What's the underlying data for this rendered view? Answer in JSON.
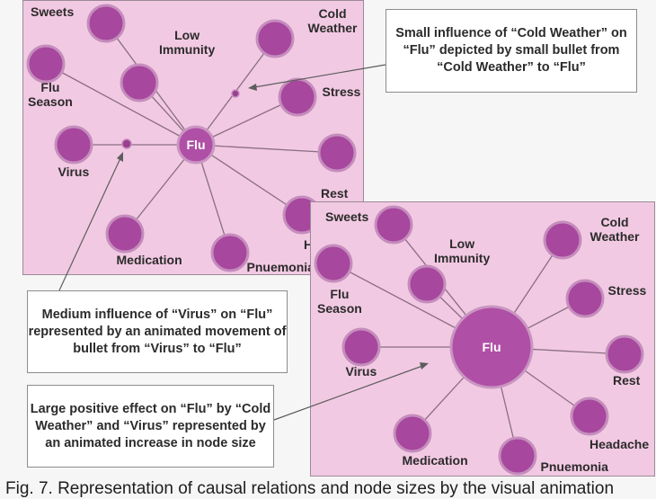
{
  "panel_a": {
    "hub": {
      "id": "flu",
      "label": "Flu"
    },
    "nodes": [
      {
        "id": "sweets",
        "label": "Sweets"
      },
      {
        "id": "low-immunity",
        "label": "Low\nImmunity"
      },
      {
        "id": "flu-season",
        "label": "Flu\nSeason"
      },
      {
        "id": "cold-weather",
        "label": "Cold\nWeather"
      },
      {
        "id": "stress",
        "label": "Stress"
      },
      {
        "id": "rest",
        "label": "Rest"
      },
      {
        "id": "virus",
        "label": "Virus"
      },
      {
        "id": "medication",
        "label": "Medication"
      },
      {
        "id": "pnuemonia",
        "label": "Pnuemonia"
      },
      {
        "id": "headache",
        "label": "Headache"
      }
    ]
  },
  "panel_b": {
    "hub": {
      "id": "flu",
      "label": "Flu"
    },
    "nodes": [
      {
        "id": "sweets",
        "label": "Sweets"
      },
      {
        "id": "low-immunity",
        "label": "Low\nImmunity"
      },
      {
        "id": "flu-season",
        "label": "Flu\nSeason"
      },
      {
        "id": "cold-weather",
        "label": "Cold\nWeather"
      },
      {
        "id": "stress",
        "label": "Stress"
      },
      {
        "id": "rest",
        "label": "Rest"
      },
      {
        "id": "virus",
        "label": "Virus"
      },
      {
        "id": "medication",
        "label": "Medication"
      },
      {
        "id": "pnuemonia",
        "label": "Pnuemonia"
      },
      {
        "id": "headache",
        "label": "Headache"
      }
    ]
  },
  "callouts": {
    "small_influence": "Small influence of “Cold Weather” on “Flu” depicted by small bullet from “Cold Weather” to “Flu”",
    "medium_influence": "Medium influence of “Virus” on “Flu” represented by an animated movement of bullet from “Virus” to “Flu”",
    "large_effect": "Large positive effect on “Flu” by “Cold Weather” and “Virus” represented by an animated increase in node size"
  },
  "caption": "Fig. 7. Representation of causal relations and node sizes by the visual animation",
  "colors": {
    "panel_fill": "#f2c9e2",
    "node_fill": "#a7479d",
    "node_ring": "#c58dbd",
    "edge": "#8a6e84"
  }
}
